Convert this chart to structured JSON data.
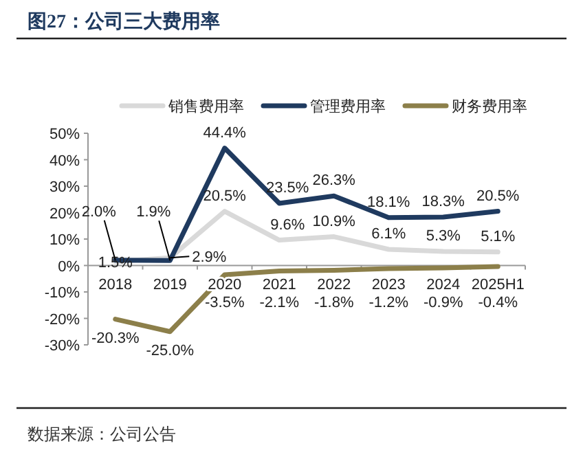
{
  "chart_data": {
    "type": "line",
    "title": "图27：公司三大费用率",
    "categories": [
      "2018",
      "2019",
      "2020",
      "2021",
      "2022",
      "2023",
      "2024",
      "2025H1"
    ],
    "series": [
      {
        "name": "销售费用率",
        "color": "#d9d9d9",
        "values": [
          1.5,
          2.9,
          20.5,
          9.6,
          10.9,
          6.1,
          5.3,
          5.1
        ],
        "value_labels": [
          "1.5%",
          "2.9%",
          "20.5%",
          "9.6%",
          "10.9%",
          "6.1%",
          "5.3%",
          "5.1%"
        ]
      },
      {
        "name": "管理费用率",
        "color": "#1f3a5f",
        "values": [
          2.0,
          1.9,
          44.4,
          23.5,
          26.3,
          18.1,
          18.3,
          20.5
        ],
        "value_labels": [
          "2.0%",
          "1.9%",
          "44.4%",
          "23.5%",
          "26.3%",
          "18.1%",
          "18.3%",
          "20.5%"
        ]
      },
      {
        "name": "财务费用率",
        "color": "#8c7f4a",
        "values": [
          -20.3,
          -25.0,
          -3.5,
          -2.1,
          -1.8,
          -1.2,
          -0.9,
          -0.4
        ],
        "value_labels": [
          "-20.3%",
          "-25.0%",
          "-3.5%",
          "-2.1%",
          "-1.8%",
          "-1.2%",
          "-0.9%",
          "-0.4%"
        ]
      }
    ],
    "ylim": [
      -30,
      50
    ],
    "yticks": [
      {
        "value": -30,
        "label": "-30%"
      },
      {
        "value": -20,
        "label": "-20%"
      },
      {
        "value": -10,
        "label": "-10%"
      },
      {
        "value": 0,
        "label": "0%"
      },
      {
        "value": 10,
        "label": "10%"
      },
      {
        "value": 20,
        "label": "20%"
      },
      {
        "value": 30,
        "label": "30%"
      },
      {
        "value": 40,
        "label": "40%"
      },
      {
        "value": 50,
        "label": "50%"
      }
    ],
    "legend": "top",
    "grid": false,
    "marker": "none",
    "line_style": "solid",
    "annotations": [
      "数据来源：公司公告"
    ]
  }
}
